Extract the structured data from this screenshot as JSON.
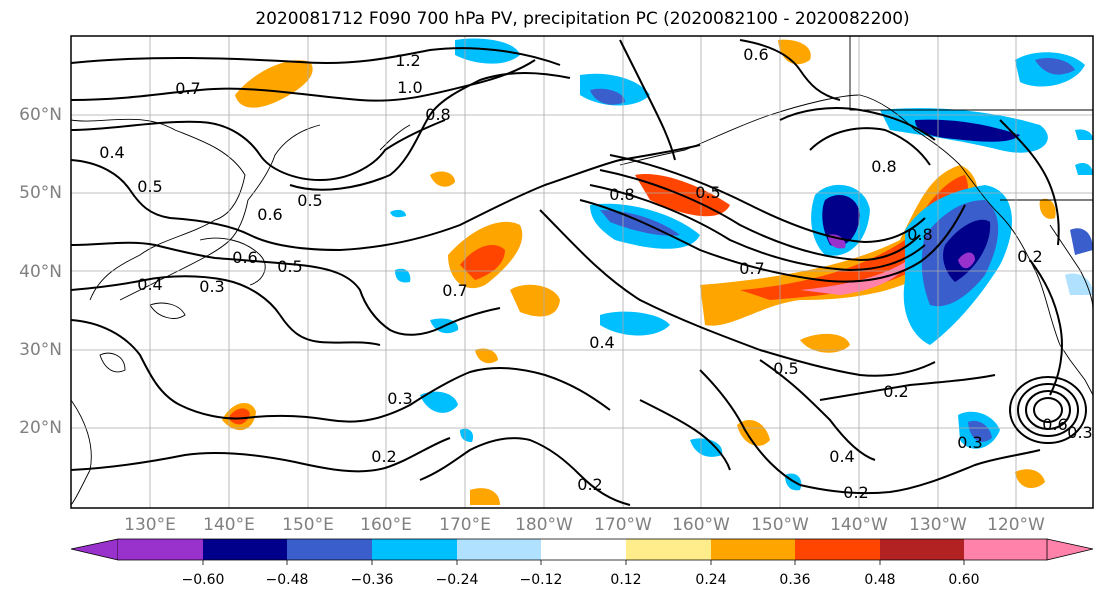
{
  "title": "2020081712 F090 700 hPa PV, precipitation PC (2020082100 - 2020082200)",
  "lat_labels": [
    "60°N",
    "50°N",
    "40°N",
    "30°N",
    "20°N"
  ],
  "lon_labels": [
    "130°E",
    "140°E",
    "150°E",
    "160°E",
    "170°E",
    "180°W",
    "170°W",
    "160°W",
    "150°W",
    "140°W",
    "130°W",
    "120°W"
  ],
  "contour_labels": [
    "0.7",
    "1.2",
    "1.0",
    "0.6",
    "0.4",
    "0.5",
    "0.5",
    "0.6",
    "0.5",
    "0.6",
    "0.7",
    "0.4",
    "0.3",
    "0.8",
    "0.8",
    "0.5",
    "0.7",
    "0.4",
    "0.5",
    "0.8",
    "0.8",
    "0.3",
    "0.2",
    "0.2",
    "0.4",
    "0.2",
    "0.3",
    "0.6",
    "0.3",
    "0.2",
    "0.2"
  ],
  "colorbar": {
    "ticks": [
      "−0.60",
      "−0.48",
      "−0.36",
      "−0.24",
      "−0.12",
      "0.12",
      "0.24",
      "0.36",
      "0.48",
      "0.60"
    ],
    "colors": [
      "#9932cc",
      "#00008b",
      "#3a5fcd",
      "#00bfff",
      "#b0e2ff",
      "#ffffff",
      "#ffec8b",
      "#ffa500",
      "#ff4500",
      "#b22222",
      "#ff82ab"
    ]
  }
}
